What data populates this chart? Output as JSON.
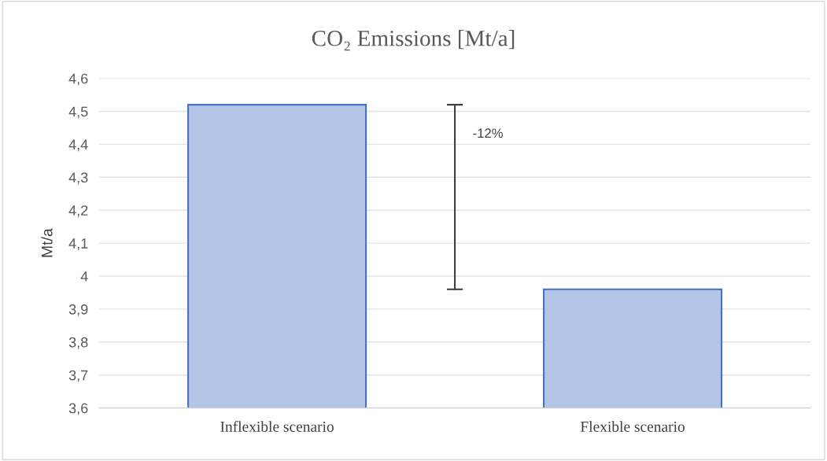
{
  "chart_data": {
    "type": "bar",
    "title": "CO₂ Emissions [Mt/a]",
    "ylabel": "Mt/a",
    "categories": [
      "Inflexible scenario",
      "Flexible scenario"
    ],
    "values": [
      4.52,
      3.96
    ],
    "color": "#b4c6e7",
    "ylim": [
      3.6,
      4.6
    ],
    "yticks": [
      {
        "value": 3.6,
        "label": "3,6"
      },
      {
        "value": 3.7,
        "label": "3,7"
      },
      {
        "value": 3.8,
        "label": "3,8"
      },
      {
        "value": 3.9,
        "label": "3,9"
      },
      4,
      {
        "value": 4.1,
        "label": "4,1"
      },
      {
        "value": 4.2,
        "label": "4,2"
      },
      {
        "value": 4.3,
        "label": "4,3"
      },
      {
        "value": 4.4,
        "label": "4,4"
      },
      {
        "value": 4.5,
        "label": "4,5"
      },
      {
        "value": 4.6,
        "label": "4,6"
      }
    ],
    "grid": "y",
    "legend": false,
    "annotations": [
      "-12%"
    ]
  }
}
